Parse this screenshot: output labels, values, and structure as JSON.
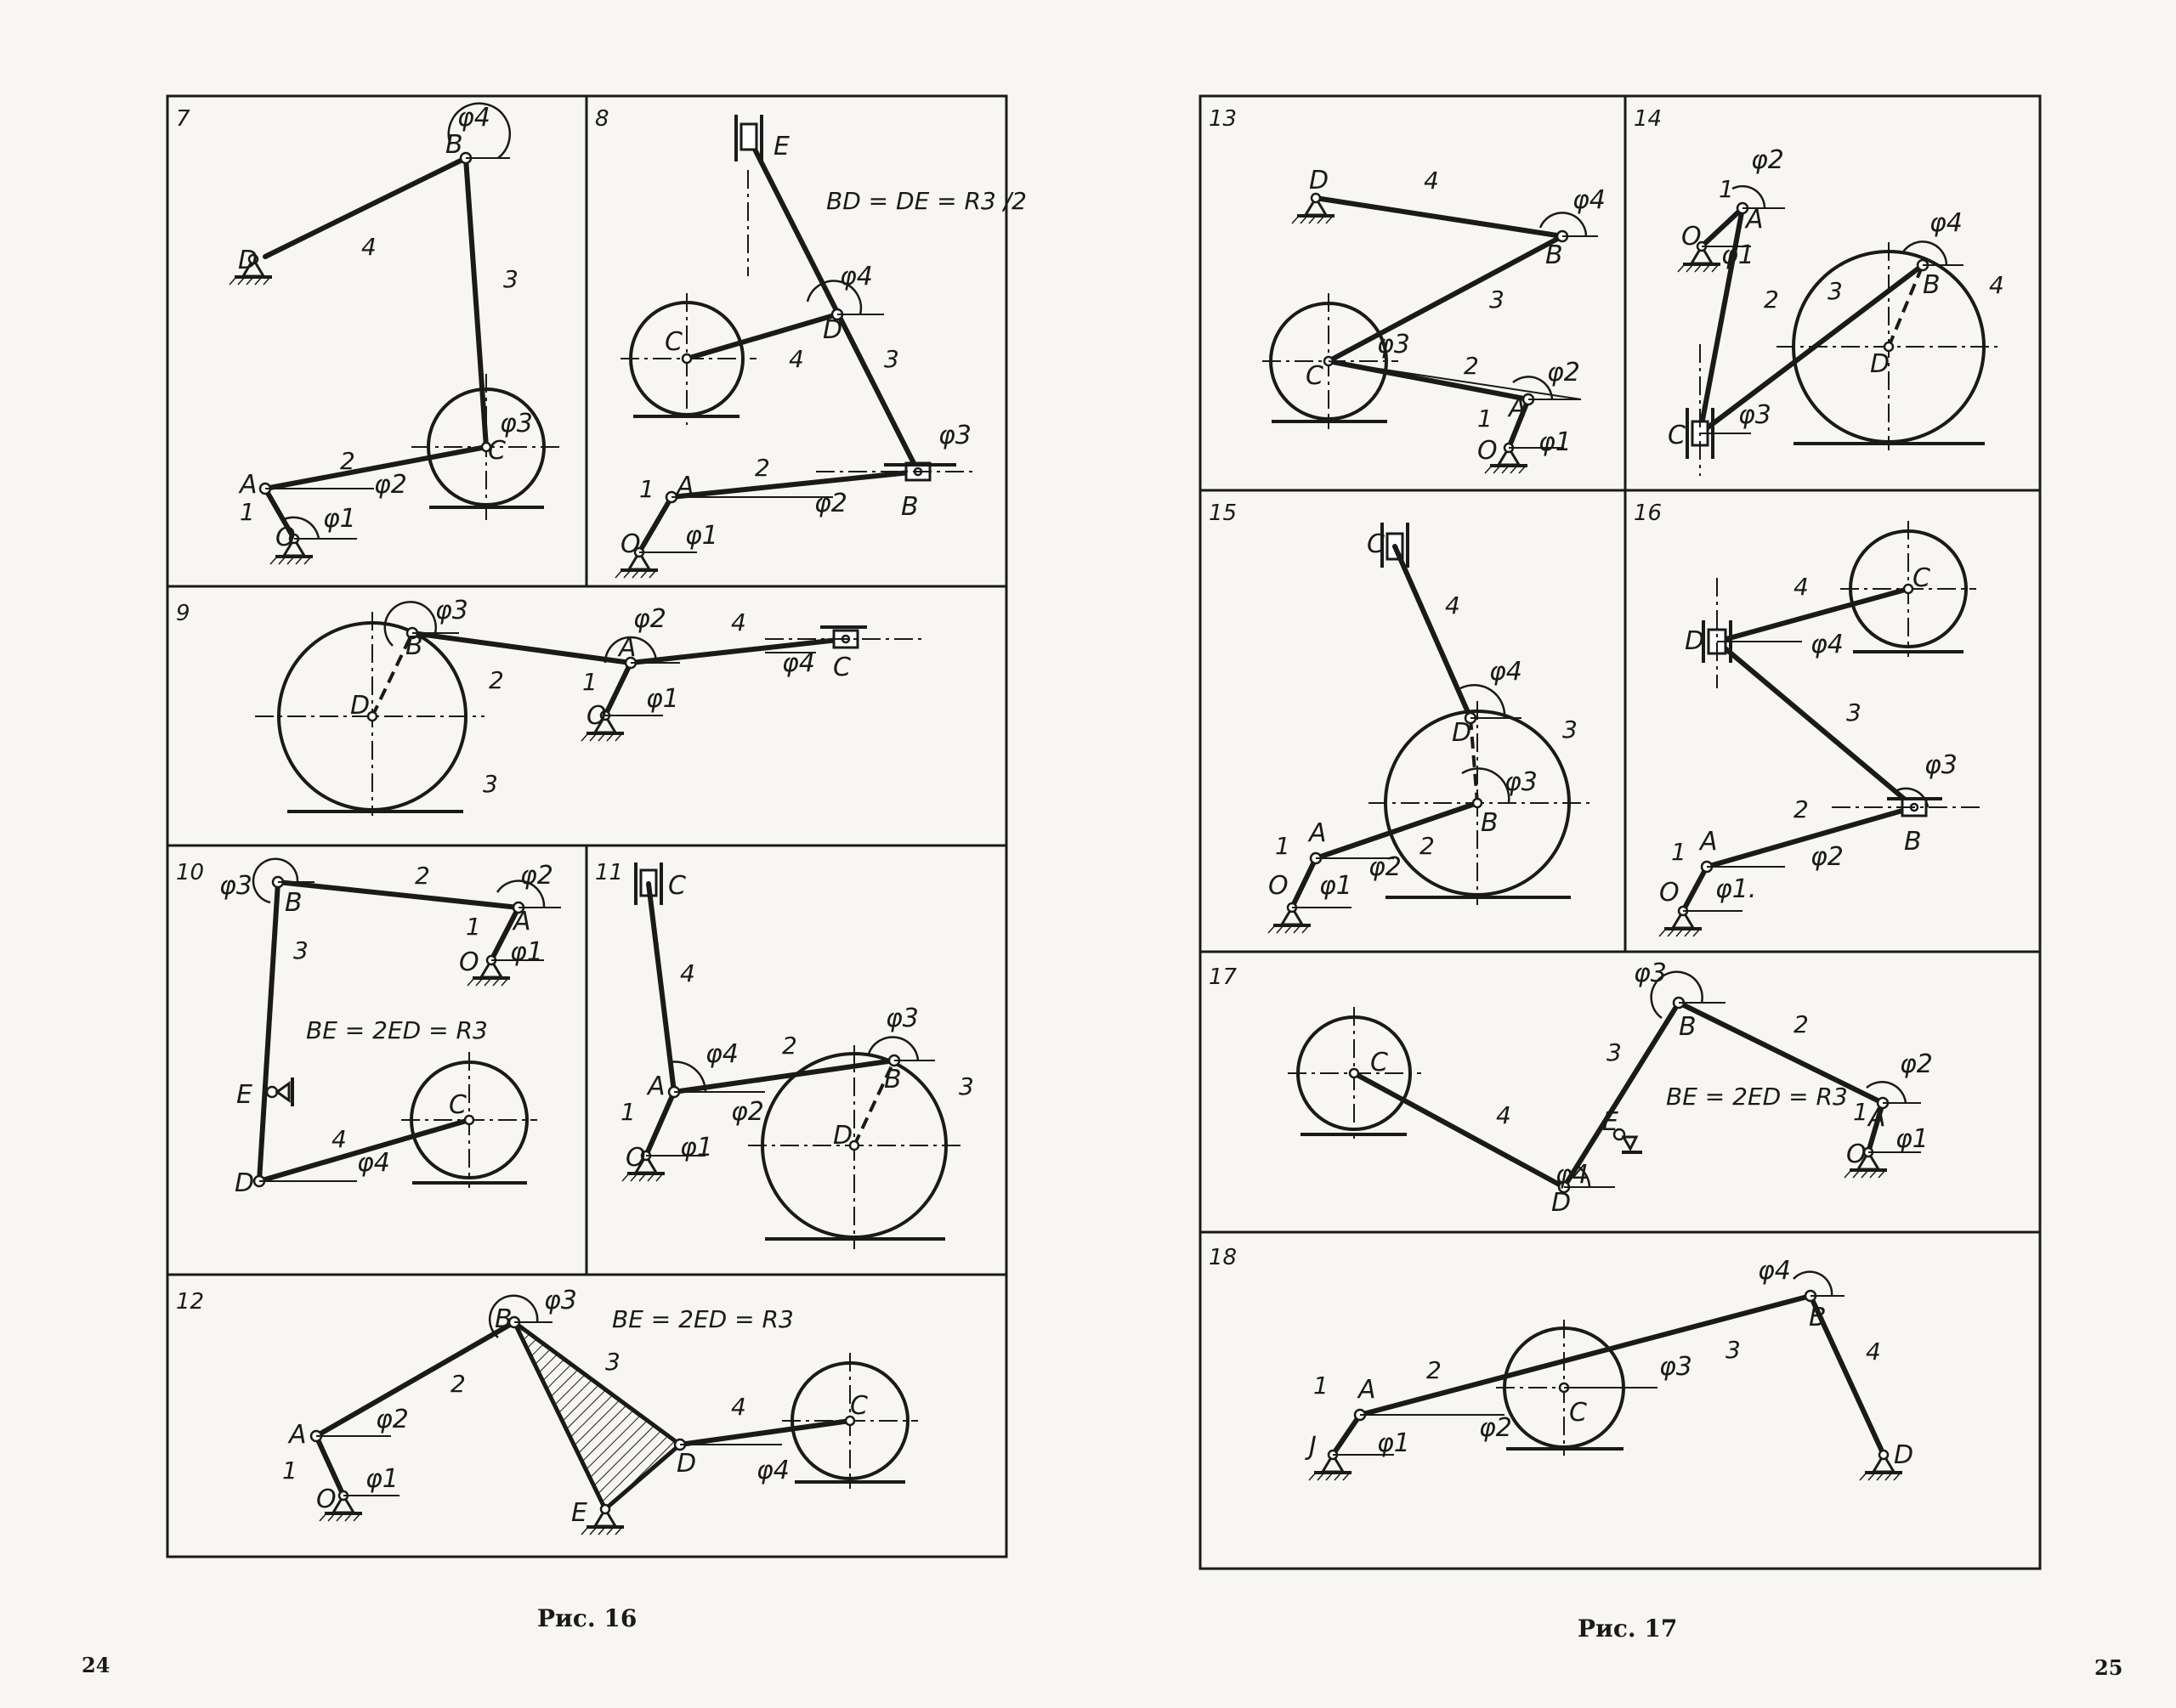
{
  "pages": [
    {
      "page_number": "24",
      "figure_caption": "Рис. 16",
      "panels": [
        {
          "number": "7",
          "joints": [
            "D",
            "B",
            "A",
            "O",
            "C"
          ],
          "links": [
            "1",
            "2",
            "3",
            "4"
          ],
          "angles": [
            "φ1",
            "φ2",
            "φ3",
            "φ4"
          ]
        },
        {
          "number": "8",
          "joints": [
            "E",
            "C",
            "D",
            "A",
            "O",
            "B"
          ],
          "links": [
            "1",
            "2",
            "3",
            "4"
          ],
          "angles": [
            "φ1",
            "φ2",
            "φ3",
            "φ4"
          ],
          "note": "BD = DE = R3 /2"
        },
        {
          "number": "9",
          "joints": [
            "B",
            "D",
            "A",
            "O",
            "C"
          ],
          "links": [
            "1",
            "2",
            "3",
            "4"
          ],
          "angles": [
            "φ1",
            "φ2",
            "φ3",
            "φ4"
          ]
        },
        {
          "number": "10",
          "joints": [
            "B",
            "A",
            "O",
            "E",
            "D",
            "C"
          ],
          "links": [
            "1",
            "2",
            "3",
            "4"
          ],
          "angles": [
            "φ1",
            "φ2",
            "φ3",
            "φ4"
          ],
          "note": "BE = 2ED = R3"
        },
        {
          "number": "11",
          "joints": [
            "C",
            "A",
            "O",
            "B",
            "D"
          ],
          "links": [
            "1",
            "2",
            "3",
            "4"
          ],
          "angles": [
            "φ1",
            "φ2",
            "φ3",
            "φ4"
          ]
        },
        {
          "number": "12",
          "joints": [
            "A",
            "O",
            "B",
            "E",
            "D",
            "C"
          ],
          "links": [
            "1",
            "2",
            "3",
            "4"
          ],
          "angles": [
            "φ1",
            "φ2",
            "φ3",
            "φ4"
          ],
          "note": "BE = 2ED = R3"
        }
      ]
    },
    {
      "page_number": "25",
      "figure_caption": "Рис. 17",
      "panels": [
        {
          "number": "13",
          "joints": [
            "D",
            "B",
            "C",
            "A",
            "O"
          ],
          "links": [
            "1",
            "2",
            "3",
            "4"
          ],
          "angles": [
            "φ1",
            "φ2",
            "φ3",
            "φ4"
          ]
        },
        {
          "number": "14",
          "joints": [
            "O",
            "A",
            "B",
            "D",
            "C"
          ],
          "links": [
            "1",
            "2",
            "3",
            "4"
          ],
          "angles": [
            "φ1",
            "φ2",
            "φ3",
            "φ4"
          ]
        },
        {
          "number": "15",
          "joints": [
            "C",
            "D",
            "B",
            "A",
            "O"
          ],
          "links": [
            "1",
            "2",
            "3",
            "4"
          ],
          "angles": [
            "φ1",
            "φ2",
            "φ3",
            "φ4"
          ]
        },
        {
          "number": "16",
          "joints": [
            "C",
            "D",
            "B",
            "A",
            "O"
          ],
          "links": [
            "1",
            "2",
            "3",
            "4"
          ],
          "angles": [
            "φ1",
            "φ2",
            "φ3",
            "φ4"
          ]
        },
        {
          "number": "17",
          "joints": [
            "C",
            "B",
            "E",
            "D",
            "A",
            "O"
          ],
          "links": [
            "1",
            "2",
            "3",
            "4"
          ],
          "angles": [
            "φ1",
            "φ2",
            "φ3",
            "φ4"
          ],
          "note": "BE = 2ED = R3"
        },
        {
          "number": "18",
          "joints": [
            "J",
            "A",
            "C",
            "B",
            "D"
          ],
          "links": [
            "1",
            "2",
            "3",
            "4"
          ],
          "angles": [
            "φ1",
            "φ2",
            "φ3",
            "φ4"
          ]
        }
      ]
    }
  ]
}
